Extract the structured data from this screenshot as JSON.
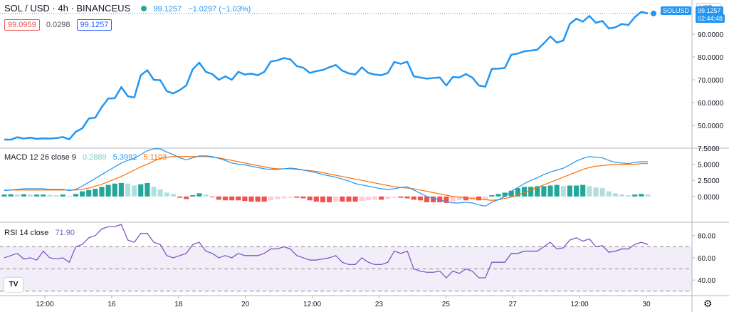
{
  "header": {
    "symbol": "SOL / USD · 4h · BINANCEUS",
    "last": "99.1257",
    "change": "−1.0297 (−1.03%)",
    "bid": "99.0959",
    "spread": "0.0298",
    "ask": "99.1257"
  },
  "price_axis": {
    "currency": "USD",
    "symbol_tag": "SOLUSD",
    "last_tag": "99.1257",
    "countdown": "02:44:48"
  },
  "macd": {
    "label": "MACD 12 26 close 9",
    "hist": "0.2889",
    "macd": "5.3992",
    "signal": "5.1103"
  },
  "rsi": {
    "label": "RSI 14 close",
    "value": "71.90"
  },
  "colors": {
    "price": "#2196f3",
    "macd_line": "#2196f3",
    "signal_line": "#ff6d00",
    "hist_up_strong": "#26a69a",
    "hist_up_weak": "#b2dfdb",
    "hist_down_strong": "#ef5350",
    "hist_down_weak": "#ffcdd2",
    "rsi_line": "#7e57c2",
    "rsi_band": "#7e57c2"
  },
  "chart_data": [
    {
      "type": "line",
      "ylim": [
        40,
        105
      ],
      "yticks": [
        50,
        60,
        70,
        80,
        90
      ],
      "ytick_labels": [
        "50.0000",
        "60.0000",
        "70.0000",
        "80.0000",
        "90.0000"
      ],
      "x_ticks": [
        "12:00",
        "16",
        "18",
        "20",
        "12:00",
        "23",
        "25",
        "27",
        "12:00",
        "30"
      ],
      "series": [
        {
          "values": [
            43.8,
            43.7,
            44.8,
            44.2,
            44.6,
            44.1,
            44.3,
            44.2,
            44.4,
            44.9,
            43.9,
            47.2,
            48.7,
            53.0,
            53.4,
            58.0,
            61.8,
            61.9,
            66.8,
            62.8,
            62.2,
            72.0,
            74.2,
            70.0,
            69.8,
            65.0,
            64.0,
            65.5,
            67.5,
            74.7,
            77.5,
            73.5,
            72.5,
            70.0,
            71.5,
            70.0,
            73.5,
            72.3,
            72.7,
            72.0,
            73.5,
            78.0,
            78.5,
            79.5,
            79.0,
            76.0,
            75.3,
            73.0,
            73.8,
            74.3,
            75.5,
            76.5,
            74.0,
            72.8,
            72.3,
            75.5,
            73.0,
            72.3,
            72.0,
            73.0,
            77.8,
            77.0,
            77.9,
            71.5,
            71.0,
            70.5,
            70.8,
            71.0,
            67.5,
            71.2,
            71.0,
            72.5,
            71.0,
            67.5,
            67.0,
            74.8,
            74.9,
            75.2,
            81.0,
            81.5,
            82.5,
            82.8,
            83.2,
            86.0,
            89.0,
            86.3,
            87.2,
            94.5,
            96.8,
            95.5,
            98.0,
            95.0,
            95.8,
            92.5,
            93.0,
            94.5,
            94.0,
            97.5,
            99.8,
            99.1
          ]
        }
      ]
    },
    {
      "type": "bar",
      "title": "MACD 12 26 close 9",
      "ylim": [
        -4,
        7.5
      ],
      "yticks": [
        0,
        2.5,
        5,
        7.5
      ],
      "ytick_labels": [
        "0.0000",
        "2.5000",
        "5.0000",
        "7.5000"
      ],
      "series": [
        {
          "name": "histogram",
          "values": [
            0.3,
            0.35,
            0.3,
            0.35,
            0.3,
            0.3,
            0.3,
            0.25,
            0.2,
            0.3,
            0.1,
            0.4,
            0.8,
            1.0,
            1.2,
            1.5,
            1.8,
            2.0,
            2.1,
            2.0,
            1.7,
            1.9,
            2.1,
            1.5,
            1.1,
            0.6,
            0.4,
            -0.2,
            -0.4,
            0.2,
            0.5,
            0.3,
            -0.1,
            -0.5,
            -0.6,
            -0.6,
            -0.6,
            -0.7,
            -0.8,
            -0.8,
            -0.8,
            -0.6,
            -0.4,
            -0.3,
            -0.2,
            -0.2,
            -0.3,
            -0.6,
            -0.8,
            -0.9,
            -0.9,
            -0.8,
            -0.8,
            -0.8,
            -0.8,
            -0.7,
            -0.6,
            -0.5,
            -0.5,
            -0.4,
            -0.2,
            -0.2,
            -0.3,
            -0.5,
            -0.6,
            -0.9,
            -0.9,
            -0.9,
            -1.0,
            -0.8,
            -0.6,
            -0.6,
            -0.5,
            -0.6,
            -0.5,
            0.2,
            0.4,
            0.6,
            0.9,
            1.3,
            1.5,
            1.5,
            1.6,
            1.6,
            1.7,
            1.8,
            1.6,
            1.7,
            1.7,
            1.8,
            1.6,
            1.4,
            1.3,
            0.8,
            0.5,
            0.3,
            0.2,
            0.3,
            0.4,
            0.3
          ]
        },
        {
          "name": "macd",
          "values": [
            0.9,
            1.0,
            1.1,
            1.2,
            1.2,
            1.2,
            1.2,
            1.1,
            1.1,
            1.1,
            0.9,
            1.1,
            1.6,
            2.2,
            2.8,
            3.4,
            4.0,
            4.6,
            5.2,
            5.6,
            5.9,
            6.5,
            7.1,
            7.4,
            7.4,
            6.9,
            6.5,
            6.0,
            5.7,
            6.0,
            6.3,
            6.3,
            6.2,
            5.9,
            5.6,
            5.2,
            5.0,
            4.9,
            4.7,
            4.5,
            4.3,
            4.2,
            4.2,
            4.3,
            4.4,
            4.3,
            4.1,
            3.9,
            3.7,
            3.4,
            3.2,
            3.0,
            2.7,
            2.4,
            2.0,
            1.8,
            1.6,
            1.4,
            1.2,
            1.1,
            1.2,
            1.4,
            1.5,
            1.0,
            0.5,
            0.0,
            -0.3,
            -0.5,
            -0.8,
            -1.0,
            -1.0,
            -0.9,
            -1.0,
            -1.3,
            -1.5,
            -0.9,
            -0.5,
            0.0,
            0.8,
            1.4,
            2.0,
            2.5,
            2.9,
            3.4,
            3.8,
            4.1,
            4.4,
            4.9,
            5.5,
            5.9,
            6.2,
            6.1,
            6.0,
            5.6,
            5.3,
            5.2,
            5.1,
            5.3,
            5.4,
            5.4
          ]
        },
        {
          "name": "signal",
          "values": [
            1.0,
            1.0,
            1.0,
            1.0,
            1.0,
            1.0,
            1.0,
            1.0,
            1.0,
            1.0,
            1.0,
            1.0,
            1.1,
            1.3,
            1.6,
            1.9,
            2.3,
            2.7,
            3.1,
            3.6,
            4.1,
            4.6,
            5.0,
            5.5,
            5.9,
            6.1,
            6.2,
            6.2,
            6.2,
            6.2,
            6.2,
            6.2,
            6.1,
            6.0,
            5.8,
            5.6,
            5.4,
            5.2,
            5.0,
            4.8,
            4.6,
            4.4,
            4.3,
            4.3,
            4.3,
            4.2,
            4.1,
            4.0,
            3.9,
            3.7,
            3.5,
            3.3,
            3.1,
            2.9,
            2.7,
            2.5,
            2.3,
            2.1,
            1.9,
            1.7,
            1.5,
            1.4,
            1.3,
            1.2,
            1.0,
            0.8,
            0.6,
            0.4,
            0.2,
            0.0,
            -0.1,
            -0.2,
            -0.3,
            -0.4,
            -0.5,
            -0.6,
            -0.5,
            -0.3,
            -0.1,
            0.2,
            0.6,
            1.0,
            1.4,
            1.8,
            2.2,
            2.6,
            3.0,
            3.4,
            3.8,
            4.2,
            4.5,
            4.7,
            4.8,
            4.9,
            5.0,
            5.0,
            5.0,
            5.0,
            5.1,
            5.1
          ]
        }
      ]
    },
    {
      "type": "line",
      "title": "RSI 14 close",
      "ylim": [
        26,
        92
      ],
      "yticks": [
        40,
        60,
        80
      ],
      "ytick_labels": [
        "40.00",
        "60.00",
        "80.00"
      ],
      "bands": [
        30,
        50,
        70
      ],
      "series": [
        {
          "name": "RSI",
          "values": [
            60,
            62,
            64,
            59,
            60,
            58,
            66,
            60,
            59,
            60,
            56,
            70,
            72,
            78,
            80,
            86,
            88,
            88,
            90,
            76,
            74,
            82,
            82,
            74,
            72,
            62,
            60,
            62,
            64,
            72,
            74,
            66,
            64,
            60,
            62,
            60,
            64,
            62,
            62,
            62,
            64,
            68,
            68,
            70,
            68,
            62,
            60,
            58,
            58,
            59,
            60,
            62,
            56,
            54,
            54,
            60,
            56,
            54,
            54,
            56,
            66,
            64,
            66,
            50,
            48,
            47,
            47,
            48,
            42,
            48,
            46,
            50,
            48,
            42,
            42,
            56,
            56,
            56,
            64,
            64,
            66,
            66,
            66,
            70,
            74,
            68,
            69,
            76,
            78,
            75,
            77,
            70,
            71,
            65,
            66,
            68,
            68,
            72,
            74,
            71.9
          ]
        }
      ]
    }
  ]
}
